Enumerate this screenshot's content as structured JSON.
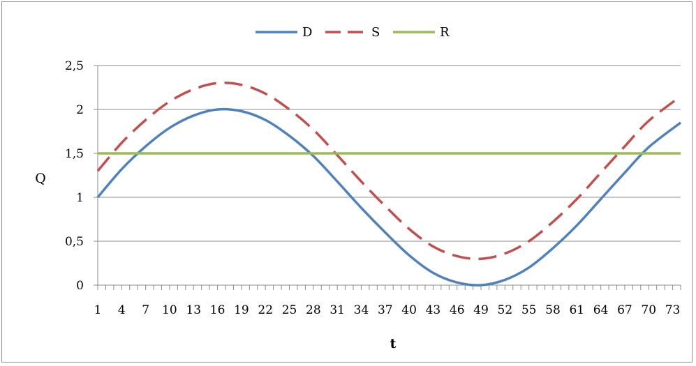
{
  "chart_data": {
    "type": "line",
    "xlabel": "t",
    "ylabel": "Q",
    "ylim": [
      0,
      2.5
    ],
    "xlim": [
      1,
      74
    ],
    "y_ticks": [
      "0",
      "0,5",
      "1",
      "1,5",
      "2",
      "2,5"
    ],
    "y_tick_values": [
      0,
      0.5,
      1,
      1.5,
      2,
      2.5
    ],
    "x_tick_labels": [
      "1",
      "4",
      "7",
      "10",
      "13",
      "16",
      "19",
      "22",
      "25",
      "28",
      "31",
      "34",
      "37",
      "40",
      "43",
      "46",
      "49",
      "52",
      "55",
      "58",
      "61",
      "64",
      "67",
      "70",
      "73"
    ],
    "grid": "horizontal",
    "legend_position": "top",
    "series": [
      {
        "name": "D",
        "color": "#4f81bd",
        "dash": "solid",
        "x": [
          1,
          4,
          7,
          10,
          13,
          16,
          19,
          22,
          25,
          28,
          31,
          34,
          37,
          40,
          43,
          46,
          49,
          52,
          55,
          58,
          61,
          64,
          67,
          70,
          74
        ],
        "values": [
          1.0,
          1.32,
          1.58,
          1.79,
          1.93,
          2.0,
          1.98,
          1.88,
          1.7,
          1.47,
          1.18,
          0.88,
          0.6,
          0.34,
          0.14,
          0.03,
          0.0,
          0.06,
          0.2,
          0.42,
          0.68,
          0.98,
          1.28,
          1.57,
          1.85
        ]
      },
      {
        "name": "S",
        "color": "#c0504d",
        "dash": "dashed",
        "x": [
          1,
          4,
          7,
          10,
          13,
          16,
          19,
          22,
          25,
          28,
          31,
          34,
          37,
          40,
          43,
          46,
          49,
          52,
          55,
          58,
          61,
          64,
          67,
          70,
          74
        ],
        "values": [
          1.3,
          1.62,
          1.88,
          2.09,
          2.23,
          2.3,
          2.28,
          2.18,
          2.0,
          1.77,
          1.48,
          1.18,
          0.9,
          0.64,
          0.44,
          0.33,
          0.3,
          0.36,
          0.5,
          0.72,
          0.98,
          1.28,
          1.58,
          1.87,
          2.15
        ]
      },
      {
        "name": "R",
        "color": "#9bbb59",
        "dash": "solid",
        "x": [
          1,
          74
        ],
        "values": [
          1.5,
          1.5
        ]
      }
    ]
  }
}
